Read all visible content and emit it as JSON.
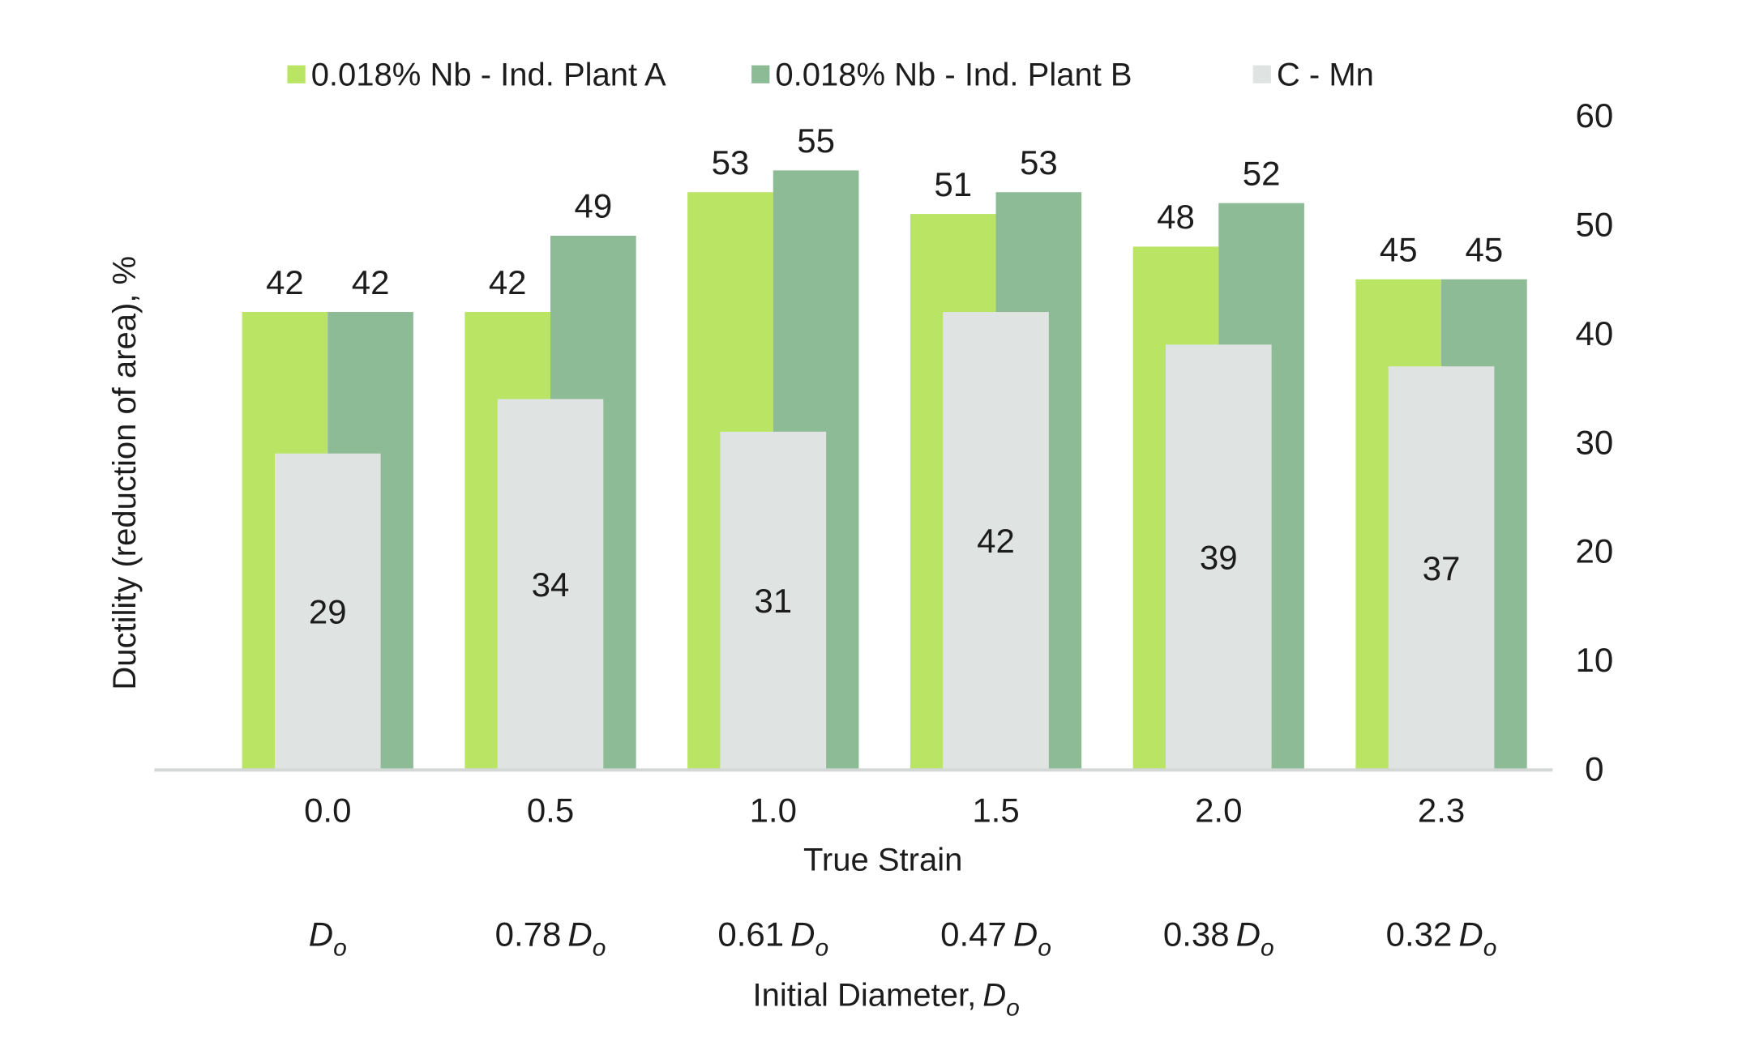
{
  "chart_data": {
    "type": "bar",
    "ylabel": "Ductility (reduction of area), %",
    "xlabel": "True Strain",
    "x2label": {
      "text": "Initial Diameter,",
      "symbol": "D",
      "subscript": "o"
    },
    "categories": [
      "0.0",
      "0.5",
      "1.0",
      "1.5",
      "2.0",
      "2.3"
    ],
    "secondary_categories": [
      {
        "prefix": "",
        "symbol": "D",
        "subscript": "o"
      },
      {
        "prefix": "0.78",
        "symbol": "D",
        "subscript": "o"
      },
      {
        "prefix": "0.61",
        "symbol": "D",
        "subscript": "o"
      },
      {
        "prefix": "0.47",
        "symbol": "D",
        "subscript": "o"
      },
      {
        "prefix": "0.38",
        "symbol": "D",
        "subscript": "o"
      },
      {
        "prefix": "0.32",
        "symbol": "D",
        "subscript": "o"
      }
    ],
    "series": [
      {
        "name": "0.018% Nb - Ind. Plant A",
        "color": "#b9e464",
        "values": [
          42,
          42,
          53,
          51,
          48,
          45
        ]
      },
      {
        "name": "0.018% Nb - Ind. Plant B",
        "color": "#8dbb96",
        "values": [
          42,
          49,
          55,
          53,
          52,
          45
        ]
      },
      {
        "name": "C - Mn",
        "color": "#dfe3e1",
        "values": [
          29,
          34,
          31,
          42,
          39,
          37
        ]
      }
    ],
    "ylim": [
      0,
      60
    ],
    "yticks": [
      0,
      10,
      20,
      30,
      40,
      50,
      60
    ],
    "yaxis_side": "right",
    "legend_position": "top",
    "grid": false,
    "axis_color": "#d3d8d6"
  }
}
